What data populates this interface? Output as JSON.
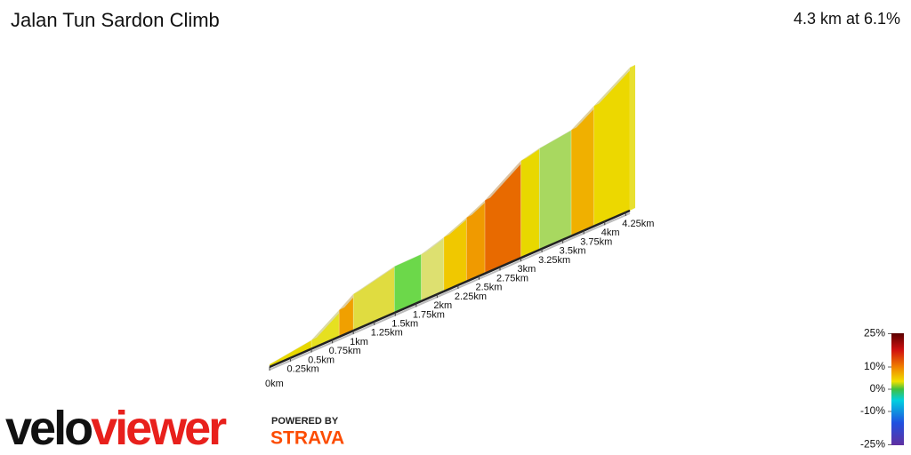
{
  "chart_data": {
    "type": "profile3d",
    "title": "Jalan Tun Sardon Climb",
    "subtitle": "4.3 km at 6.1%",
    "x": [
      0,
      0.5,
      0.83,
      1.0,
      1.49,
      1.81,
      2.08,
      2.35,
      2.57,
      3.0,
      3.22,
      3.6,
      3.87,
      4.3
    ],
    "values": [
      5,
      16,
      49,
      67,
      85,
      86,
      99,
      117,
      134,
      178,
      186,
      194,
      220,
      262
    ],
    "colors": [
      "#e8d800",
      "#e6e020",
      "#f0a000",
      "#e0dc40",
      "#6cd84a",
      "#dde070",
      "#f0c800",
      "#f09a00",
      "#e86a00",
      "#e8d800",
      "#a8d860",
      "#f0b000",
      "#ecd800",
      "#e8e030"
    ],
    "xlim": [
      0,
      4.3
    ],
    "ylim": [
      0,
      262
    ],
    "xticks": [
      {
        "value": 0,
        "label": "0km"
      },
      {
        "value": 0.25,
        "label": "0.25km"
      },
      {
        "value": 0.5,
        "label": "0.5km"
      },
      {
        "value": 0.75,
        "label": "0.75km"
      },
      {
        "value": 1,
        "label": "1km"
      },
      {
        "value": 1.25,
        "label": "1.25km"
      },
      {
        "value": 1.5,
        "label": "1.5km"
      },
      {
        "value": 1.75,
        "label": "1.75km"
      },
      {
        "value": 2,
        "label": "2km"
      },
      {
        "value": 2.25,
        "label": "2.25km"
      },
      {
        "value": 2.5,
        "label": "2.5km"
      },
      {
        "value": 2.75,
        "label": "2.75km"
      },
      {
        "value": 3,
        "label": "3km"
      },
      {
        "value": 3.25,
        "label": "3.25km"
      },
      {
        "value": 3.5,
        "label": "3.5km"
      },
      {
        "value": 3.75,
        "label": "3.75km"
      },
      {
        "value": 4,
        "label": "4km"
      },
      {
        "value": 4.25,
        "label": "4.25km"
      }
    ],
    "colorbar_ticks": [
      {
        "value": 25,
        "label": "25%"
      },
      {
        "value": 10,
        "label": "10%"
      },
      {
        "value": 0,
        "label": "0%"
      },
      {
        "value": -10,
        "label": "-10%"
      },
      {
        "value": -25,
        "label": "-25%"
      }
    ]
  },
  "branding": {
    "logo_velo": "velo",
    "logo_viewer": "viewer",
    "powered_by": "POWERED BY",
    "strava": "STRAVA"
  }
}
